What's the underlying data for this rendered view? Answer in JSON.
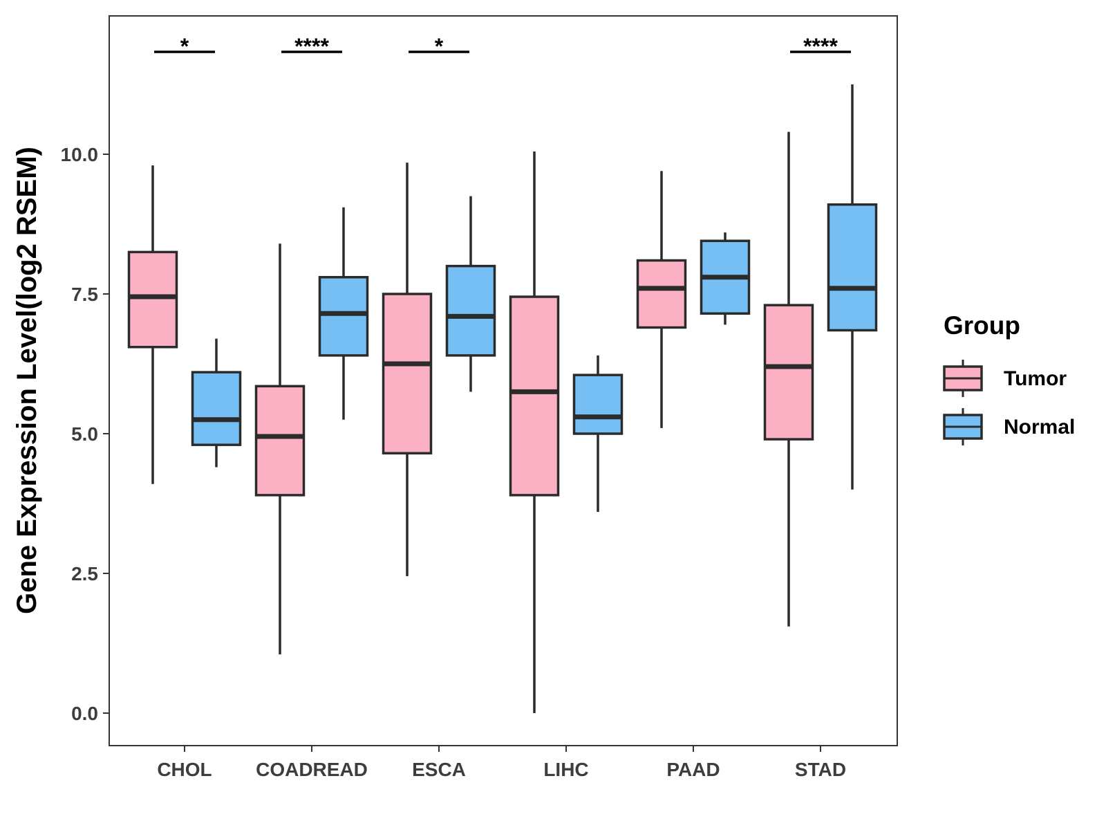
{
  "chart_data": {
    "type": "boxplot",
    "title": "",
    "xlabel": "",
    "ylabel": "Gene Expression Level(log2 RSEM)",
    "ylim": [
      -0.6,
      12.4
    ],
    "yticks": [
      0.0,
      2.5,
      5.0,
      7.5,
      10.0
    ],
    "ytick_labels": [
      "0.0",
      "2.5",
      "5.0",
      "7.5",
      "10.0"
    ],
    "categories": [
      "CHOL",
      "COADREAD",
      "ESCA",
      "LIHC",
      "PAAD",
      "STAD"
    ],
    "legend": {
      "title": "Group",
      "position": "right",
      "entries": [
        {
          "name": "Tumor",
          "color": "#fbb0c3"
        },
        {
          "name": "Normal",
          "color": "#76bff5"
        }
      ]
    },
    "series": [
      {
        "name": "Tumor",
        "color": "#fbb0c3",
        "boxes": [
          {
            "min": 4.1,
            "q1": 6.55,
            "median": 7.45,
            "q3": 8.25,
            "max": 9.8
          },
          {
            "min": 1.05,
            "q1": 3.9,
            "median": 4.95,
            "q3": 5.85,
            "max": 8.4
          },
          {
            "min": 2.45,
            "q1": 4.65,
            "median": 6.25,
            "q3": 7.5,
            "max": 9.85
          },
          {
            "min": 0.0,
            "q1": 3.9,
            "median": 5.75,
            "q3": 7.45,
            "max": 10.05
          },
          {
            "min": 5.1,
            "q1": 6.9,
            "median": 7.6,
            "q3": 8.1,
            "max": 9.7
          },
          {
            "min": 1.55,
            "q1": 4.9,
            "median": 6.2,
            "q3": 7.3,
            "max": 10.4
          }
        ]
      },
      {
        "name": "Normal",
        "color": "#76bff5",
        "boxes": [
          {
            "min": 4.4,
            "q1": 4.8,
            "median": 5.25,
            "q3": 6.1,
            "max": 6.7
          },
          {
            "min": 5.25,
            "q1": 6.4,
            "median": 7.15,
            "q3": 7.8,
            "max": 9.05
          },
          {
            "min": 5.75,
            "q1": 6.4,
            "median": 7.1,
            "q3": 8.0,
            "max": 9.25
          },
          {
            "min": 3.6,
            "q1": 5.0,
            "median": 5.3,
            "q3": 6.05,
            "max": 6.4
          },
          {
            "min": 6.95,
            "q1": 7.15,
            "median": 7.8,
            "q3": 8.45,
            "max": 8.6
          },
          {
            "min": 4.0,
            "q1": 6.85,
            "median": 7.6,
            "q3": 9.1,
            "max": 11.25
          }
        ]
      }
    ],
    "significance": [
      {
        "category": "CHOL",
        "label": "*"
      },
      {
        "category": "COADREAD",
        "label": "****"
      },
      {
        "category": "ESCA",
        "label": "*"
      },
      {
        "category": "STAD",
        "label": "****"
      }
    ],
    "grid": false
  }
}
